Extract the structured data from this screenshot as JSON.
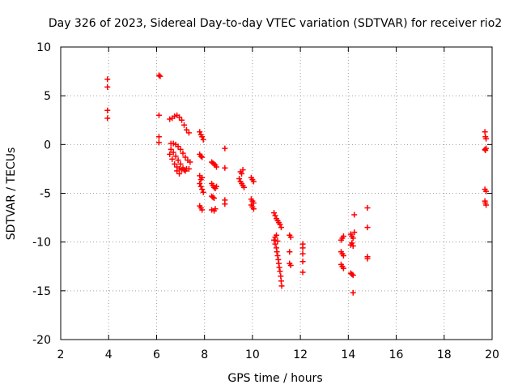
{
  "chart_data": {
    "type": "scatter",
    "title": "Day 326 of 2023, Sidereal Day-to-day VTEC variation (SDTVAR) for receiver rio2",
    "xlabel": "GPS time / hours",
    "ylabel": "SDTVAR / TECUs",
    "xlim": [
      2,
      20
    ],
    "ylim": [
      -20,
      10
    ],
    "xticks": [
      2,
      4,
      6,
      8,
      10,
      12,
      14,
      16,
      18,
      20
    ],
    "yticks": [
      -20,
      -15,
      -10,
      -5,
      0,
      5,
      10
    ],
    "grid": true,
    "marker": "plus",
    "colors": {
      "points": "#ff0000",
      "axes": "#000000",
      "grid": "#a0a0a0"
    },
    "series": [
      {
        "name": "SDTVAR",
        "points": [
          [
            3.95,
            6.7
          ],
          [
            3.95,
            5.9
          ],
          [
            3.95,
            3.5
          ],
          [
            3.95,
            2.7
          ],
          [
            6.1,
            7.1
          ],
          [
            6.15,
            7.0
          ],
          [
            6.1,
            3.0
          ],
          [
            6.1,
            0.8
          ],
          [
            6.1,
            0.2
          ],
          [
            6.55,
            2.6
          ],
          [
            6.65,
            2.7
          ],
          [
            6.75,
            2.9
          ],
          [
            6.85,
            3.0
          ],
          [
            6.95,
            2.8
          ],
          [
            7.05,
            2.5
          ],
          [
            7.15,
            2.0
          ],
          [
            7.25,
            1.5
          ],
          [
            7.35,
            1.2
          ],
          [
            6.55,
            -1.0
          ],
          [
            6.65,
            -1.5
          ],
          [
            6.75,
            -2.0
          ],
          [
            6.85,
            -2.3
          ],
          [
            6.95,
            -2.5
          ],
          [
            7.05,
            -2.6
          ],
          [
            7.15,
            -2.6
          ],
          [
            7.25,
            -2.5
          ],
          [
            7.35,
            -2.5
          ],
          [
            6.6,
            0.1
          ],
          [
            6.7,
            0.1
          ],
          [
            6.8,
            0.0
          ],
          [
            6.9,
            -0.2
          ],
          [
            7.0,
            -0.5
          ],
          [
            7.1,
            -0.9
          ],
          [
            7.2,
            -1.3
          ],
          [
            7.3,
            -1.6
          ],
          [
            7.4,
            -1.8
          ],
          [
            6.6,
            -0.5
          ],
          [
            6.7,
            -0.8
          ],
          [
            6.8,
            -1.2
          ],
          [
            6.9,
            -1.6
          ],
          [
            7.0,
            -2.0
          ],
          [
            7.1,
            -2.4
          ],
          [
            7.2,
            -2.7
          ],
          [
            6.95,
            -3.0
          ],
          [
            6.85,
            -2.7
          ],
          [
            7.8,
            1.3
          ],
          [
            7.85,
            1.0
          ],
          [
            7.9,
            0.8
          ],
          [
            7.95,
            0.5
          ],
          [
            7.8,
            -1.0
          ],
          [
            7.85,
            -1.2
          ],
          [
            7.9,
            -1.3
          ],
          [
            7.8,
            -3.2
          ],
          [
            7.85,
            -3.6
          ],
          [
            7.8,
            -4.0
          ],
          [
            7.85,
            -4.3
          ],
          [
            7.9,
            -4.6
          ],
          [
            7.95,
            -4.9
          ],
          [
            7.9,
            -3.4
          ],
          [
            7.8,
            -6.3
          ],
          [
            7.85,
            -6.5
          ],
          [
            7.9,
            -6.7
          ],
          [
            8.3,
            -1.8
          ],
          [
            8.35,
            -1.9
          ],
          [
            8.4,
            -2.0
          ],
          [
            8.45,
            -2.1
          ],
          [
            8.5,
            -2.3
          ],
          [
            8.3,
            -4.0
          ],
          [
            8.35,
            -4.2
          ],
          [
            8.4,
            -4.4
          ],
          [
            8.45,
            -4.5
          ],
          [
            8.5,
            -4.3
          ],
          [
            8.3,
            -5.3
          ],
          [
            8.35,
            -5.4
          ],
          [
            8.4,
            -5.5
          ],
          [
            8.3,
            -6.7
          ],
          [
            8.4,
            -6.8
          ],
          [
            8.45,
            -6.6
          ],
          [
            8.85,
            -0.4
          ],
          [
            8.85,
            -2.4
          ],
          [
            8.85,
            -5.7
          ],
          [
            8.85,
            -6.1
          ],
          [
            9.45,
            -3.5
          ],
          [
            9.5,
            -3.8
          ],
          [
            9.55,
            -4.0
          ],
          [
            9.6,
            -4.2
          ],
          [
            9.65,
            -4.4
          ],
          [
            9.5,
            -2.8
          ],
          [
            9.55,
            -3.0
          ],
          [
            9.6,
            -2.6
          ],
          [
            9.95,
            -3.4
          ],
          [
            10.0,
            -3.6
          ],
          [
            10.05,
            -3.8
          ],
          [
            9.95,
            -5.6
          ],
          [
            10.0,
            -5.8
          ],
          [
            10.05,
            -6.0
          ],
          [
            9.95,
            -6.2
          ],
          [
            10.0,
            -6.4
          ],
          [
            10.05,
            -6.6
          ],
          [
            10.9,
            -7.0
          ],
          [
            10.95,
            -7.3
          ],
          [
            11.0,
            -7.6
          ],
          [
            11.05,
            -7.8
          ],
          [
            11.1,
            -8.0
          ],
          [
            11.15,
            -8.2
          ],
          [
            11.2,
            -8.5
          ],
          [
            10.9,
            -9.8
          ],
          [
            10.95,
            -10.2
          ],
          [
            11.0,
            -10.6
          ],
          [
            11.02,
            -11.0
          ],
          [
            11.05,
            -11.4
          ],
          [
            11.08,
            -11.8
          ],
          [
            11.1,
            -12.2
          ],
          [
            11.12,
            -12.6
          ],
          [
            11.15,
            -13.0
          ],
          [
            11.18,
            -13.5
          ],
          [
            11.2,
            -14.0
          ],
          [
            11.22,
            -14.5
          ],
          [
            10.95,
            -9.5
          ],
          [
            11.0,
            -9.3
          ],
          [
            11.05,
            -9.9
          ],
          [
            11.55,
            -9.3
          ],
          [
            11.6,
            -9.5
          ],
          [
            11.55,
            -11.0
          ],
          [
            11.55,
            -12.2
          ],
          [
            11.6,
            -12.4
          ],
          [
            12.1,
            -10.2
          ],
          [
            12.1,
            -10.6
          ],
          [
            12.1,
            -11.2
          ],
          [
            12.1,
            -12.0
          ],
          [
            12.1,
            -13.1
          ],
          [
            13.7,
            -9.8
          ],
          [
            13.75,
            -9.6
          ],
          [
            13.8,
            -9.4
          ],
          [
            13.7,
            -11.0
          ],
          [
            13.75,
            -11.2
          ],
          [
            13.8,
            -11.4
          ],
          [
            13.7,
            -12.3
          ],
          [
            13.75,
            -12.5
          ],
          [
            13.8,
            -12.7
          ],
          [
            14.1,
            -9.2
          ],
          [
            14.15,
            -9.4
          ],
          [
            14.2,
            -9.6
          ],
          [
            14.25,
            -9.0
          ],
          [
            14.1,
            -10.3
          ],
          [
            14.15,
            -10.1
          ],
          [
            14.2,
            -10.4
          ],
          [
            14.1,
            -13.2
          ],
          [
            14.15,
            -13.3
          ],
          [
            14.2,
            -13.4
          ],
          [
            14.25,
            -7.2
          ],
          [
            14.2,
            -15.2
          ],
          [
            14.8,
            -6.5
          ],
          [
            14.8,
            -8.5
          ],
          [
            14.8,
            -11.5
          ],
          [
            14.8,
            -11.7
          ],
          [
            19.7,
            1.3
          ],
          [
            19.72,
            0.8
          ],
          [
            19.75,
            0.6
          ],
          [
            19.7,
            -0.5
          ],
          [
            19.72,
            -0.6
          ],
          [
            19.75,
            -0.4
          ],
          [
            19.7,
            -4.6
          ],
          [
            19.75,
            -4.8
          ],
          [
            19.7,
            -5.8
          ],
          [
            19.72,
            -6.0
          ],
          [
            19.75,
            -6.2
          ]
        ]
      }
    ]
  }
}
